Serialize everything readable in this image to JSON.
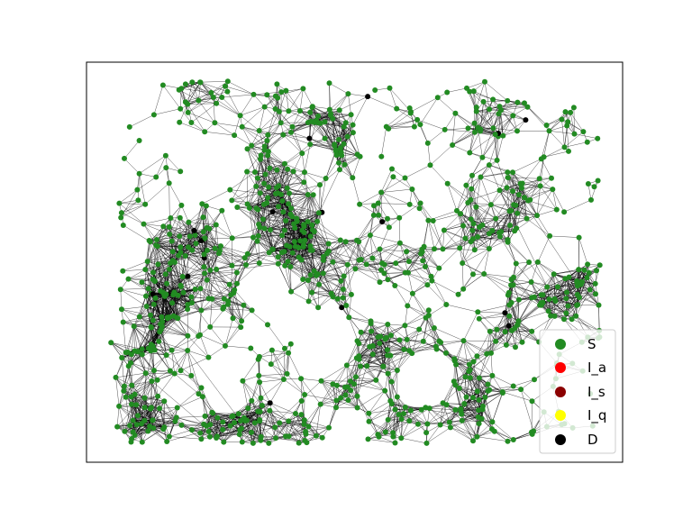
{
  "graph": {
    "node_count": 1000,
    "seed": 7,
    "colors": {
      "edge": "#000000",
      "susceptible": "#228B22",
      "dead": "#000000"
    }
  },
  "legend": {
    "items": [
      {
        "label": "S",
        "color": "#228B22"
      },
      {
        "label": "I_a",
        "color": "#FF0000"
      },
      {
        "label": "I_s",
        "color": "#8B0000"
      },
      {
        "label": "I_q",
        "color": "#FFFF00"
      },
      {
        "label": "D",
        "color": "#000000"
      }
    ]
  }
}
